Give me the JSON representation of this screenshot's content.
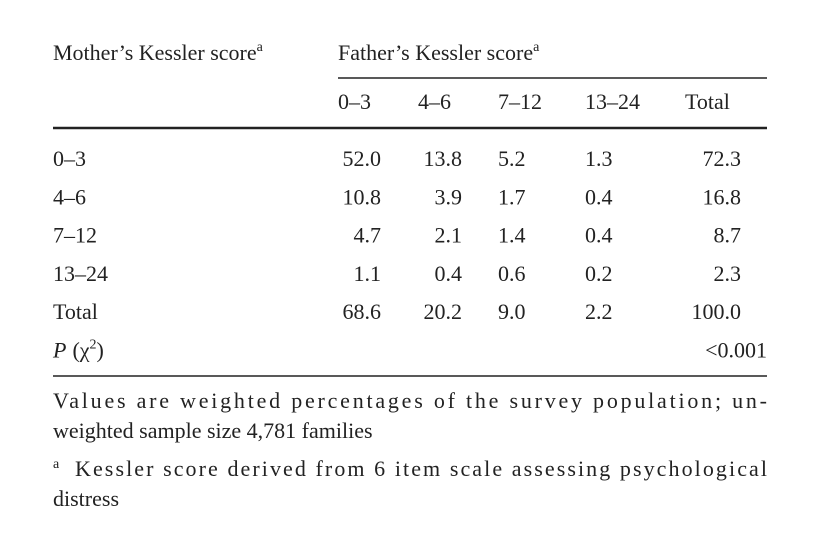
{
  "table": {
    "row_header": {
      "text": "Mother’s Kessler score",
      "sup": "a"
    },
    "column_group": {
      "text": "Father’s Kessler score",
      "sup": "a"
    },
    "columns": [
      "0–3",
      "4–6",
      "7–12",
      "13–24",
      "Total"
    ],
    "rows": [
      {
        "label": "0–3",
        "cells": [
          "52.0",
          "13.8",
          "5.2",
          "1.3",
          "72.3"
        ]
      },
      {
        "label": "4–6",
        "cells": [
          "10.8",
          "3.9",
          "1.7",
          "0.4",
          "16.8"
        ]
      },
      {
        "label": "7–12",
        "cells": [
          "4.7",
          "2.1",
          "1.4",
          "0.4",
          "8.7"
        ]
      },
      {
        "label": "13–24",
        "cells": [
          "1.1",
          "0.4",
          "0.6",
          "0.2",
          "2.3"
        ]
      },
      {
        "label": "Total",
        "cells": [
          "68.6",
          "20.2",
          "9.0",
          "2.2",
          "100.0"
        ]
      }
    ],
    "p_row": {
      "label": {
        "italic": "P",
        "open": "(χ",
        "sup": "2",
        "close": ")"
      },
      "value": "<0.001"
    }
  },
  "notes": [
    {
      "lines": [
        "Values are weighted percentages of the survey population; un-",
        "weighted sample size 4,781 families"
      ]
    },
    {
      "marker": "a",
      "lines": [
        "Kessler score derived from 6 item scale assessing psychological",
        "distress"
      ]
    }
  ]
}
